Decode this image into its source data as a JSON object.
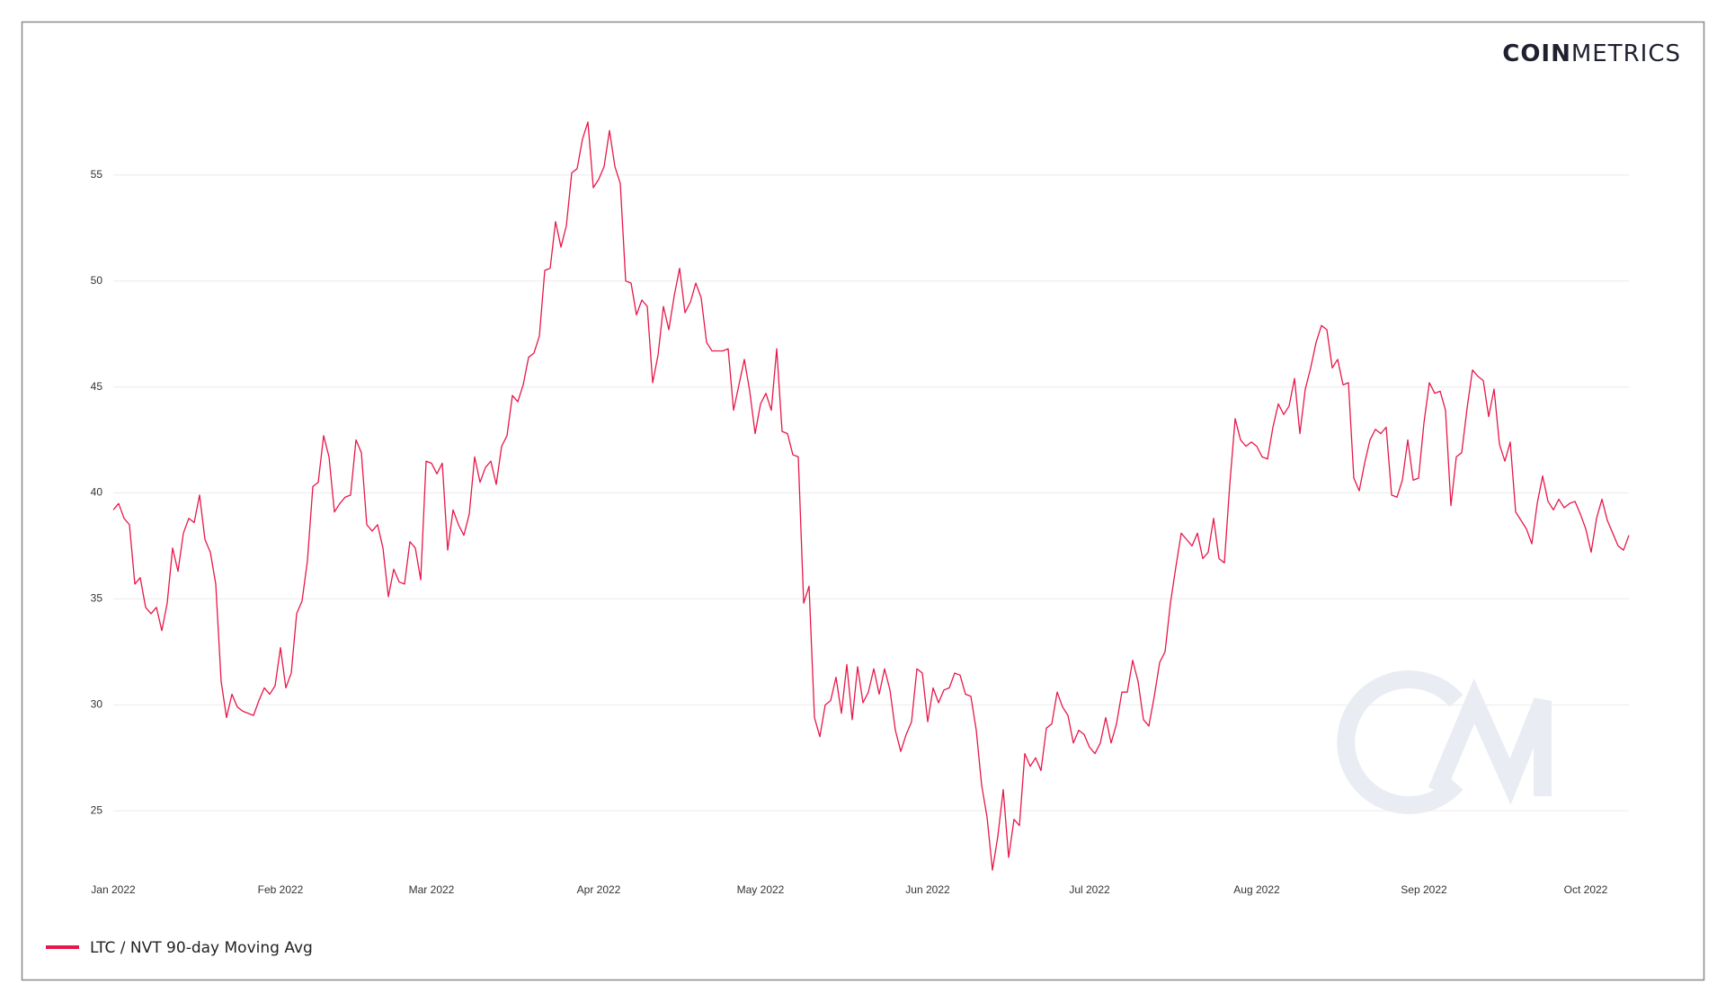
{
  "chart_data": {
    "type": "line",
    "brand": {
      "bold": "COIN",
      "light": "METRICS"
    },
    "x": [
      0,
      1,
      2,
      3,
      4,
      5,
      6,
      7,
      8,
      9,
      10,
      11,
      12,
      13,
      14,
      15,
      16,
      17,
      18,
      19,
      20,
      21,
      22,
      23,
      24,
      25,
      26,
      27,
      28,
      29,
      30,
      31,
      32,
      33,
      34,
      35,
      36,
      37,
      38,
      39,
      40,
      41,
      42,
      43,
      44,
      45,
      46,
      47,
      48,
      49,
      50,
      51,
      52,
      53,
      54,
      55,
      56,
      57,
      58,
      59,
      60,
      61,
      62,
      63,
      64,
      65,
      66,
      67,
      68,
      69,
      70,
      71,
      72,
      73,
      74,
      75,
      76,
      77,
      78,
      79,
      80,
      81,
      82,
      83,
      84,
      85,
      86,
      87,
      88,
      89,
      90,
      91,
      92,
      93,
      94,
      95,
      96,
      97,
      98,
      99,
      100,
      101,
      102,
      103,
      104,
      105,
      106,
      107,
      108,
      109,
      110,
      111,
      112,
      113,
      114,
      115,
      116,
      117,
      118,
      119,
      120,
      121,
      122,
      123,
      124,
      125,
      126,
      127,
      128,
      129,
      130,
      131,
      132,
      133,
      134,
      135,
      136,
      137,
      138,
      139,
      140,
      141,
      142,
      143,
      144,
      145,
      146,
      147,
      148,
      149,
      150,
      151,
      152,
      153,
      154,
      155,
      156,
      157,
      158,
      159,
      160,
      161,
      162,
      163,
      164,
      165,
      166,
      167,
      168,
      169,
      170,
      171,
      172,
      173,
      174,
      175,
      176,
      177,
      178,
      179,
      180,
      181,
      182,
      183,
      184,
      185,
      186,
      187,
      188,
      189,
      190,
      191,
      192,
      193,
      194,
      195,
      196,
      197,
      198,
      199,
      200,
      201,
      202,
      203,
      204,
      205,
      206,
      207,
      208,
      209,
      210,
      211,
      212,
      213,
      214,
      215,
      216,
      217,
      218,
      219,
      220,
      221,
      222,
      223,
      224,
      225,
      226,
      227,
      228,
      229,
      230,
      231,
      232,
      233,
      234,
      235,
      236,
      237,
      238,
      239,
      240,
      241,
      242,
      243,
      244,
      245,
      246,
      247,
      248,
      249,
      250,
      251,
      252,
      253,
      254,
      255,
      256,
      257,
      258,
      259,
      260,
      261,
      262,
      263,
      264,
      265,
      266,
      267,
      268,
      269,
      270,
      271,
      272,
      273,
      274,
      275,
      276,
      277,
      278,
      279,
      280,
      281
    ],
    "series": [
      {
        "name": "LTC / NVT 90-day Moving Avg",
        "color": "#e8174a",
        "values": [
          39.2,
          39.5,
          38.8,
          38.5,
          35.7,
          36.0,
          34.6,
          34.3,
          34.6,
          33.5,
          34.8,
          37.4,
          36.3,
          38.1,
          38.8,
          38.6,
          39.9,
          37.8,
          37.2,
          35.7,
          31.1,
          29.4,
          30.5,
          29.9,
          29.7,
          29.6,
          29.5,
          30.2,
          30.8,
          30.5,
          30.9,
          32.7,
          30.8,
          31.5,
          34.3,
          34.9,
          36.8,
          40.3,
          40.5,
          42.7,
          41.7,
          39.1,
          39.5,
          39.8,
          39.9,
          42.5,
          41.9,
          38.5,
          38.2,
          38.5,
          37.4,
          35.1,
          36.4,
          35.8,
          35.7,
          37.7,
          37.4,
          35.9,
          41.5,
          41.4,
          40.9,
          41.4,
          37.3,
          39.2,
          38.5,
          38.0,
          39.0,
          41.7,
          40.5,
          41.2,
          41.5,
          40.4,
          42.2,
          42.7,
          44.6,
          44.3,
          45.1,
          46.4,
          46.6,
          47.4,
          50.5,
          50.6,
          52.8,
          51.6,
          52.6,
          55.1,
          55.3,
          56.7,
          57.5,
          54.4,
          54.8,
          55.4,
          57.1,
          55.4,
          54.6,
          50.0,
          49.9,
          48.4,
          49.1,
          48.8,
          45.2,
          46.5,
          48.8,
          47.7,
          49.3,
          50.6,
          48.5,
          49.0,
          49.9,
          49.2,
          47.1,
          46.7,
          46.7,
          46.7,
          46.8,
          43.9,
          45.1,
          46.3,
          44.8,
          42.8,
          44.2,
          44.7,
          43.9,
          46.8,
          42.9,
          42.8,
          41.8,
          41.7,
          34.8,
          35.6,
          29.4,
          28.5,
          30.0,
          30.2,
          31.3,
          29.6,
          31.9,
          29.3,
          31.8,
          30.1,
          30.6,
          31.7,
          30.5,
          31.7,
          30.7,
          28.8,
          27.8,
          28.6,
          29.2,
          31.7,
          31.5,
          29.2,
          30.8,
          30.1,
          30.7,
          30.8,
          31.5,
          31.4,
          30.5,
          30.4,
          28.8,
          26.2,
          24.7,
          22.2,
          23.8,
          26.0,
          22.8,
          24.6,
          24.3,
          27.7,
          27.1,
          27.5,
          26.9,
          28.9,
          29.1,
          30.6,
          29.9,
          29.5,
          28.2,
          28.8,
          28.6,
          28.0,
          27.7,
          28.2,
          29.4,
          28.2,
          29.1,
          30.6,
          30.6,
          32.1,
          31.1,
          29.3,
          29.0,
          30.4,
          32.0,
          32.5,
          34.8,
          36.5,
          38.1,
          37.8,
          37.5,
          38.1,
          36.9,
          37.2,
          38.8,
          36.9,
          36.7,
          40.4,
          43.5,
          42.5,
          42.2,
          42.4,
          42.2,
          41.7,
          41.6,
          43.1,
          44.2,
          43.7,
          44.1,
          45.4,
          42.8,
          44.9,
          45.9,
          47.1,
          47.9,
          47.7,
          45.9,
          46.3,
          45.1,
          45.2,
          40.7,
          40.1,
          41.4,
          42.5,
          43.0,
          42.8,
          43.1,
          39.9,
          39.8,
          40.6,
          42.5,
          40.6,
          40.7,
          43.3,
          45.2,
          44.7,
          44.8,
          43.9,
          39.4,
          41.7,
          41.9,
          44.0,
          45.8,
          45.5,
          45.3,
          43.6,
          44.9,
          42.3,
          41.5,
          42.4,
          39.1,
          38.7,
          38.3,
          37.6,
          39.5,
          40.8,
          39.6,
          39.2,
          39.7,
          39.3,
          39.5,
          39.6,
          39.0,
          38.3,
          37.2,
          38.8,
          39.7,
          38.7,
          38.1,
          37.5,
          37.3,
          38.0
        ]
      }
    ],
    "xlim": [
      0,
      281
    ],
    "xticks": [
      {
        "value": 0,
        "label": "Jan 2022"
      },
      {
        "value": 31,
        "label": "Feb 2022"
      },
      {
        "value": 59,
        "label": "Mar 2022"
      },
      {
        "value": 90,
        "label": "Apr 2022"
      },
      {
        "value": 120,
        "label": "May 2022"
      },
      {
        "value": 151,
        "label": "Jun 2022"
      },
      {
        "value": 181,
        "label": "Jul 2022"
      },
      {
        "value": 212,
        "label": "Aug 2022"
      },
      {
        "value": 243,
        "label": "Sep 2022"
      },
      {
        "value": 273,
        "label": "Oct 2022"
      }
    ],
    "ylim": [
      22,
      58
    ],
    "yticks": [
      25,
      30,
      35,
      40,
      45,
      50,
      55
    ],
    "grid": true,
    "legend": "bottom-left"
  }
}
